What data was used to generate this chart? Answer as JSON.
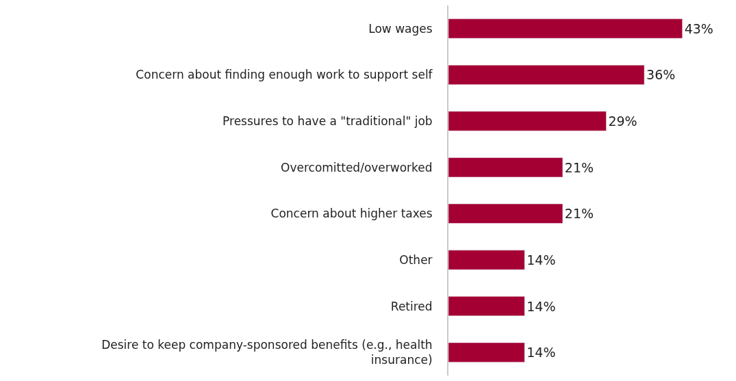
{
  "chart_data": {
    "type": "bar",
    "orientation": "horizontal",
    "categories": [
      "Low wages",
      "Concern about finding enough work to support self",
      "Pressures to have a \"traditional\" job",
      "Overcomitted/overworked",
      "Concern about higher taxes",
      "Other",
      "Retired",
      "Desire to keep company-sponsored benefits (e.g., health insurance)"
    ],
    "values": [
      43,
      36,
      29,
      21,
      21,
      14,
      14,
      14
    ],
    "value_labels": [
      "43%",
      "36%",
      "29%",
      "21%",
      "21%",
      "14%",
      "14%",
      "14%"
    ],
    "color": "#a50034"
  }
}
